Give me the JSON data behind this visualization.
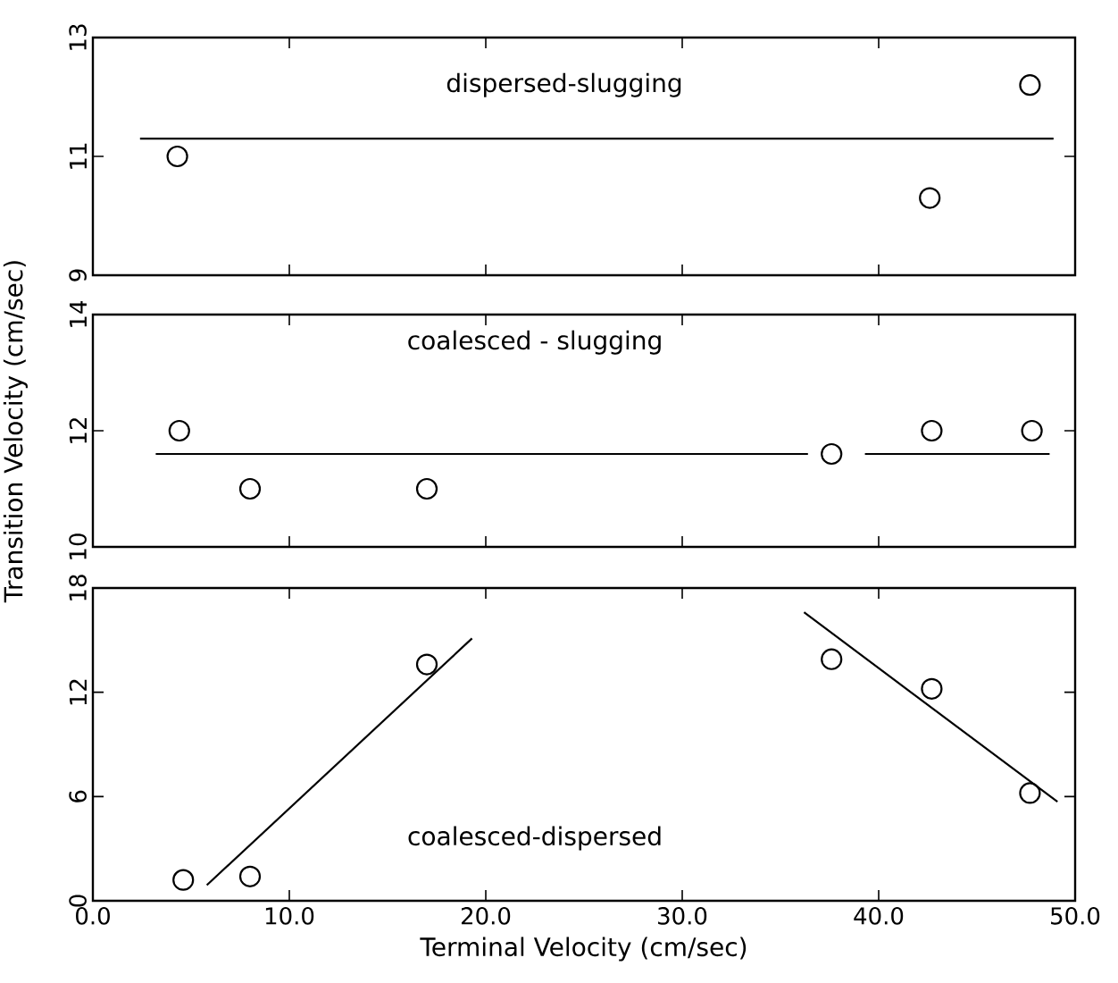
{
  "chart_data": [
    {
      "type": "scatter",
      "annotations": [
        "dispersed-slugging"
      ],
      "xlim": [
        0,
        50
      ],
      "ylim": [
        9,
        13
      ],
      "xticks": [
        0,
        10,
        20,
        30,
        40,
        50
      ],
      "yticks": [
        9,
        11,
        13
      ],
      "tick_labels": "y",
      "grid": false,
      "series": [
        {
          "color": "#000000",
          "marker": "circle",
          "x": [
            4.3,
            42.6,
            47.7
          ],
          "values": [
            11.0,
            10.3,
            12.2
          ]
        },
        {
          "type": "line",
          "color": "#000000",
          "marker": "none",
          "line_style": "solid",
          "x": [
            2.4,
            48.9
          ],
          "values": [
            11.3,
            11.3
          ]
        }
      ]
    },
    {
      "type": "scatter",
      "annotations": [
        "coalesced - slugging"
      ],
      "ylabel": "Transition Velocity (cm/sec)",
      "xlim": [
        0,
        50
      ],
      "ylim": [
        10,
        14
      ],
      "xticks": [
        0,
        10,
        20,
        30,
        40,
        50
      ],
      "yticks": [
        10,
        12,
        14
      ],
      "tick_labels": "y",
      "grid": false,
      "series": [
        {
          "color": "#000000",
          "marker": "circle",
          "x": [
            4.4,
            8.0,
            17.0,
            37.6,
            42.7,
            47.8
          ],
          "values": [
            12.0,
            11.0,
            11.0,
            11.6,
            12.0,
            12.0
          ]
        },
        {
          "type": "line",
          "color": "#000000",
          "marker": "none",
          "line_style": "solid",
          "x": [
            3.2,
            36.4,
            37.8,
            39.3,
            48.7
          ],
          "values": [
            11.6,
            11.6,
            null,
            11.6,
            11.6
          ]
        }
      ]
    },
    {
      "type": "scatter",
      "annotations": [
        "coalesced-dispersed"
      ],
      "xlabel": "Terminal Velocity (cm/sec)",
      "xlim": [
        0,
        50
      ],
      "ylim": [
        0,
        18
      ],
      "xticks": [
        {
          "value": 0,
          "label": "0.0"
        },
        {
          "value": 10,
          "label": "10.0"
        },
        {
          "value": 20,
          "label": "20.0"
        },
        {
          "value": 30,
          "label": "30.0"
        },
        {
          "value": 40,
          "label": "40.0"
        },
        {
          "value": 50,
          "label": "50.0"
        }
      ],
      "yticks": [
        0,
        6,
        12,
        18
      ],
      "grid": false,
      "series": [
        {
          "color": "#000000",
          "marker": "circle",
          "x": [
            4.6,
            8.0,
            17.0,
            37.6,
            42.7,
            47.7
          ],
          "values": [
            1.2,
            1.4,
            13.6,
            13.9,
            12.2,
            6.2
          ]
        },
        {
          "type": "line",
          "color": "#000000",
          "marker": "none",
          "line_style": "solid",
          "x": [
            5.8,
            19.3
          ],
          "values": [
            0.9,
            15.1
          ]
        },
        {
          "type": "line",
          "color": "#000000",
          "marker": "none",
          "line_style": "solid",
          "x": [
            36.2,
            49.1
          ],
          "values": [
            16.6,
            5.7
          ]
        }
      ]
    }
  ]
}
